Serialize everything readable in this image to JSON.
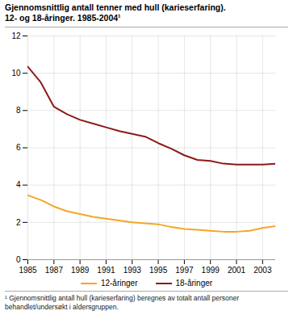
{
  "chart_data": {
    "type": "line",
    "title": "Gjennomsnittlig antall tenner med hull (karieserfaring).",
    "subtitle": "12- og 18-åringer. 1985-2004¹",
    "annotations": [
      "¹ Gjennomsnittlig antall hull (karieserfaring) beregnes av totalt antall personer\nbehandlet/undersøkt i aldersgruppen."
    ],
    "x": [
      1985,
      1986,
      1987,
      1988,
      1989,
      1990,
      1991,
      1992,
      1993,
      1994,
      1995,
      1996,
      1997,
      1998,
      1999,
      2000,
      2001,
      2002,
      2003,
      2004
    ],
    "series": [
      {
        "name": "12-åringer",
        "color": "#f5a623",
        "values": [
          3.45,
          3.2,
          2.85,
          2.6,
          2.45,
          2.3,
          2.2,
          2.1,
          2.0,
          1.95,
          1.9,
          1.75,
          1.65,
          1.6,
          1.55,
          1.5,
          1.5,
          1.55,
          1.7,
          1.8
        ]
      },
      {
        "name": "18-åringer",
        "color": "#8b1a1a",
        "values": [
          10.35,
          9.5,
          8.2,
          7.8,
          7.5,
          7.3,
          7.1,
          6.9,
          6.75,
          6.6,
          6.25,
          5.95,
          5.6,
          5.35,
          5.3,
          5.15,
          5.1,
          5.1,
          5.1,
          5.15
        ]
      }
    ],
    "xlim": [
      1985,
      2004
    ],
    "xticks": [
      1985,
      1987,
      1989,
      1991,
      1993,
      1995,
      1997,
      1999,
      2001,
      2003
    ],
    "ylim": [
      0,
      12
    ],
    "yticks": [
      0,
      2,
      4,
      6,
      8,
      10,
      12
    ],
    "grid": true,
    "legend": "bottom"
  }
}
